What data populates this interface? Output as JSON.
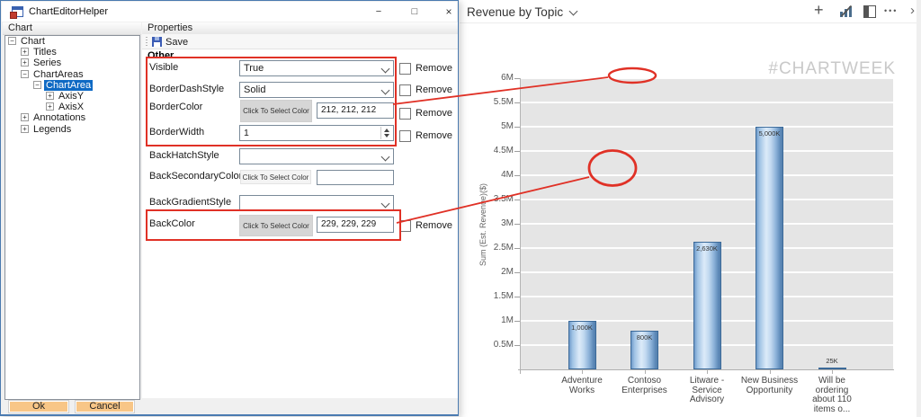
{
  "window": {
    "title": "ChartEditorHelper",
    "controls": {
      "minimize": "−",
      "maximize": "□",
      "close": "×"
    }
  },
  "left_panel": {
    "header": "Chart",
    "tree": [
      {
        "label": "Chart",
        "expander": "−",
        "indent": 0,
        "selected": false
      },
      {
        "label": "Titles",
        "expander": "+",
        "indent": 1,
        "selected": false
      },
      {
        "label": "Series",
        "expander": "+",
        "indent": 1,
        "selected": false
      },
      {
        "label": "ChartAreas",
        "expander": "−",
        "indent": 1,
        "selected": false
      },
      {
        "label": "ChartArea",
        "expander": "−",
        "indent": 2,
        "selected": true
      },
      {
        "label": "AxisY",
        "expander": "+",
        "indent": 3,
        "selected": false
      },
      {
        "label": "AxisX",
        "expander": "+",
        "indent": 3,
        "selected": false
      },
      {
        "label": "Annotations",
        "expander": "+",
        "indent": 1,
        "selected": false
      },
      {
        "label": "Legends",
        "expander": "+",
        "indent": 1,
        "selected": false
      }
    ],
    "ok_label": "Ok",
    "cancel_label": "Cancel"
  },
  "properties_panel": {
    "header": "Properties",
    "save_label": "Save",
    "section": "Other",
    "remove_label": "Remove",
    "rows": [
      {
        "name": "Visible",
        "type": "combo",
        "value": "True",
        "remove": true,
        "highlighted": true
      },
      {
        "name": "BorderDashStyle",
        "type": "combo",
        "value": "Solid",
        "remove": true,
        "highlighted": true
      },
      {
        "name": "BorderColor",
        "type": "color",
        "button": "Click To Select Color",
        "value": "212, 212, 212",
        "remove": true,
        "highlighted": true
      },
      {
        "name": "BorderWidth",
        "type": "spinner",
        "value": "1",
        "remove": true,
        "highlighted": true
      },
      {
        "name": "BackHatchStyle",
        "type": "combo",
        "value": "",
        "remove": false,
        "highlighted": false
      },
      {
        "name": "BackSecondaryColor",
        "type": "color",
        "button": "Click To Select Color",
        "value": "",
        "remove": false,
        "highlighted": false
      },
      {
        "name": "BackGradientStyle",
        "type": "combo",
        "value": "",
        "remove": false,
        "highlighted": false
      },
      {
        "name": "BackColor",
        "type": "color",
        "button": "Click To Select Color",
        "value": "229, 229, 229",
        "remove": true,
        "highlighted": true
      }
    ]
  },
  "chart_panel": {
    "header_title": "Revenue by Topic",
    "header_icons": [
      "plus",
      "bar-chart",
      "pop-out",
      "ellipsis",
      "chevron-right"
    ],
    "ellipsis_glyph": "•••",
    "chevron_right_glyph": "›",
    "plus_glyph": "+",
    "watermark": "#CHARTWEEK"
  },
  "chart_data": {
    "type": "bar",
    "title": "Revenue by Topic",
    "categories": [
      "Adventure Works",
      "Contoso Enterprises",
      "Litware - Service Advisory",
      "New Business Opportunity",
      "Will be ordering about 110 items o..."
    ],
    "category_lines": [
      [
        "Adventure",
        "Works"
      ],
      [
        "Contoso",
        "Enterprises"
      ],
      [
        "Litware -",
        "Service",
        "Advisory"
      ],
      [
        "New Business",
        "Opportunity"
      ],
      [
        "Will be",
        "ordering",
        "about 110",
        "items o..."
      ]
    ],
    "values": [
      1000000,
      800000,
      2630000,
      5000000,
      25000
    ],
    "bar_labels": [
      "1,000K",
      "800K",
      "2,630K",
      "5,000K",
      "25K"
    ],
    "xlabel": "",
    "ylabel": "Sum (Est. Revenue)($)",
    "ylim": [
      0,
      6000000
    ],
    "y_ticks": [
      "0.5M",
      "1M",
      "1.5M",
      "2M",
      "2.5M",
      "3M",
      "3.5M",
      "4M",
      "4.5M",
      "5M",
      "5.5M",
      "6M"
    ],
    "grid": true,
    "legend": false,
    "plot_background": "#e5e5e5",
    "bar_border_color": "#3c6a99",
    "watermark": "#CHARTWEEK"
  },
  "colors": {
    "annotation_red": "#e03126",
    "dialog_border_blue": "#4a7ab0",
    "ok_cancel_orange": "#f8c687",
    "tree_selection_blue": "#0f6ac4",
    "plot_background": "#e5e5e5"
  }
}
